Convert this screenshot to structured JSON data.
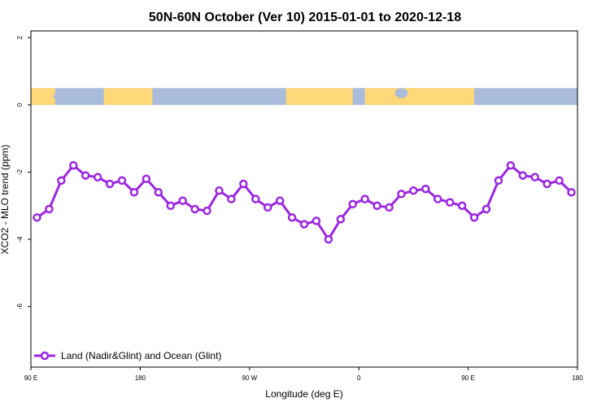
{
  "chart_data": {
    "type": "line",
    "title": "50N-60N October (Ver 10)   2015-01-01 to 2020-12-18",
    "xlabel": "Longitude (deg E)",
    "ylabel": "XCO2 - MLO trend (ppm)",
    "x_ticks": [
      {
        "value": 90,
        "label": "90 E"
      },
      {
        "value": 180,
        "label": "180"
      },
      {
        "value": 270,
        "label": "90 W"
      },
      {
        "value": 360,
        "label": "0"
      },
      {
        "value": 450,
        "label": "90 E"
      },
      {
        "value": 540,
        "label": "180"
      }
    ],
    "y_ticks": [
      {
        "value": 2,
        "label": "2"
      },
      {
        "value": 0,
        "label": "0"
      },
      {
        "value": -2,
        "label": "-2"
      },
      {
        "value": -4,
        "label": "-4"
      },
      {
        "value": -6,
        "label": "-6"
      }
    ],
    "xlim": [
      90,
      540
    ],
    "ylim": [
      -7.8,
      2.2
    ],
    "grid": false,
    "legend_position": "bottom-left",
    "map_strip": {
      "ymin": 0,
      "ymax": 0.5,
      "land_color": "#FFD87A",
      "ocean_color": "#A9BCDC"
    },
    "series": [
      {
        "name": "Land (Nadir&Glint) and Ocean (Glint)",
        "color": "#9B27E0",
        "marker": "open-circle",
        "x": [
          95,
          105,
          115,
          125,
          135,
          145,
          155,
          165,
          175,
          185,
          195,
          205,
          215,
          225,
          235,
          245,
          255,
          265,
          275,
          285,
          295,
          305,
          315,
          325,
          335,
          345,
          355,
          365,
          375,
          385,
          395,
          405,
          415,
          425,
          435,
          445,
          455,
          465,
          475,
          485,
          495,
          505,
          515,
          525,
          535
        ],
        "y": [
          -3.35,
          -3.1,
          -2.25,
          -1.8,
          -2.1,
          -2.15,
          -2.35,
          -2.25,
          -2.6,
          -2.2,
          -2.6,
          -3.0,
          -2.85,
          -3.1,
          -3.15,
          -2.55,
          -2.8,
          -2.35,
          -2.8,
          -3.05,
          -2.85,
          -3.35,
          -3.55,
          -3.45,
          -4.0,
          -3.4,
          -2.95,
          -2.8,
          -3.0,
          -3.05,
          -2.65,
          -2.55,
          -2.5,
          -2.8,
          -2.9,
          -3.0,
          -3.35,
          -3.1,
          -2.25,
          -1.8,
          -2.1,
          -2.15,
          -2.35,
          -2.25,
          -2.6
        ]
      }
    ]
  }
}
